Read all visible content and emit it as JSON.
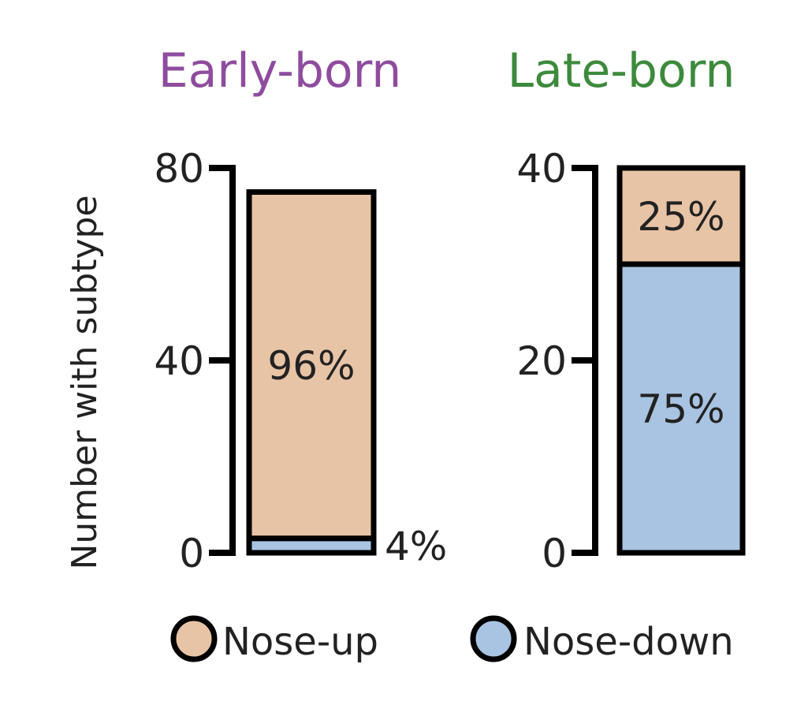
{
  "y_axis_title": "Number with subtype",
  "legend": [
    {
      "label": "Nose-up",
      "color": "#e8c4a6"
    },
    {
      "label": "Nose-down",
      "color": "#a9c4e2"
    }
  ],
  "chart_data": [
    {
      "type": "bar",
      "stacked": true,
      "title": "Early-born",
      "title_color": "#8e4c9e",
      "ylabel": "Number with subtype",
      "ylim": [
        0,
        80
      ],
      "yticks": [
        0,
        40,
        80
      ],
      "ytick_labels": [
        "0",
        "40",
        "80"
      ],
      "categories": [
        "Early-born"
      ],
      "series": [
        {
          "name": "Nose-down",
          "color": "#a9c4e2",
          "values": [
            3
          ],
          "label": "4%"
        },
        {
          "name": "Nose-up",
          "color": "#e8c4a6",
          "values": [
            72
          ],
          "label": "96%"
        }
      ]
    },
    {
      "type": "bar",
      "stacked": true,
      "title": "Late-born",
      "title_color": "#3d8a3d",
      "ylabel": "",
      "ylim": [
        0,
        40
      ],
      "yticks": [
        0,
        20,
        40
      ],
      "ytick_labels": [
        "0",
        "20",
        "40"
      ],
      "categories": [
        "Late-born"
      ],
      "series": [
        {
          "name": "Nose-down",
          "color": "#a9c4e2",
          "values": [
            30
          ],
          "label": "75%"
        },
        {
          "name": "Nose-up",
          "color": "#e8c4a6",
          "values": [
            10
          ],
          "label": "25%"
        }
      ]
    }
  ]
}
